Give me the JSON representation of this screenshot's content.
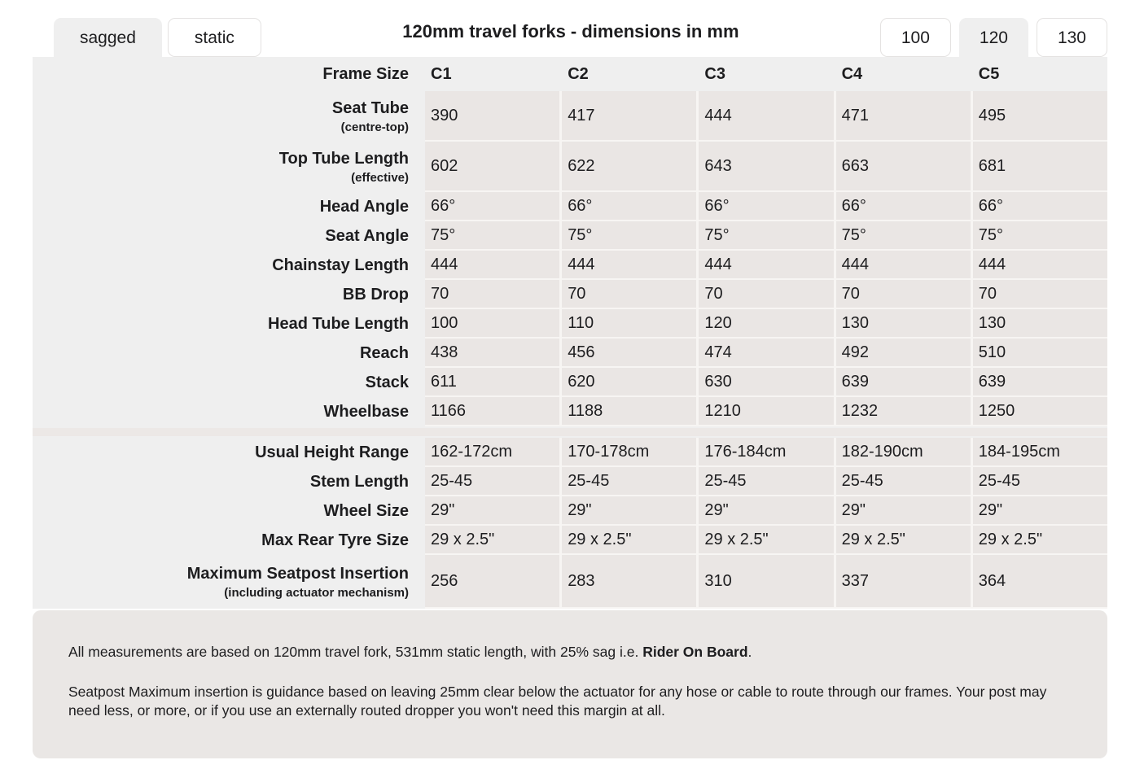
{
  "header": {
    "title": "120mm travel forks - dimensions in mm",
    "view_tabs": [
      {
        "label": "sagged",
        "active": true
      },
      {
        "label": "static",
        "active": false
      }
    ],
    "travel_tabs": [
      {
        "label": "100",
        "active": false
      },
      {
        "label": "120",
        "active": true
      },
      {
        "label": "130",
        "active": false
      }
    ]
  },
  "table": {
    "header_label": "Frame Size",
    "columns": [
      "C1",
      "C2",
      "C3",
      "C4",
      "C5"
    ],
    "sections": [
      {
        "rows": [
          {
            "label": "Seat Tube",
            "sublabel": "(centre-top)",
            "values": [
              "390",
              "417",
              "444",
              "471",
              "495"
            ]
          },
          {
            "label": "Top Tube Length",
            "sublabel": "(effective)",
            "values": [
              "602",
              "622",
              "643",
              "663",
              "681"
            ]
          },
          {
            "label": "Head Angle",
            "values": [
              "66°",
              "66°",
              "66°",
              "66°",
              "66°"
            ]
          },
          {
            "label": "Seat Angle",
            "values": [
              "75°",
              "75°",
              "75°",
              "75°",
              "75°"
            ]
          },
          {
            "label": "Chainstay Length",
            "values": [
              "444",
              "444",
              "444",
              "444",
              "444"
            ]
          },
          {
            "label": "BB Drop",
            "values": [
              "70",
              "70",
              "70",
              "70",
              "70"
            ]
          },
          {
            "label": "Head Tube Length",
            "values": [
              "100",
              "110",
              "120",
              "130",
              "130"
            ]
          },
          {
            "label": "Reach",
            "values": [
              "438",
              "456",
              "474",
              "492",
              "510"
            ]
          },
          {
            "label": "Stack",
            "values": [
              "611",
              "620",
              "630",
              "639",
              "639"
            ]
          },
          {
            "label": "Wheelbase",
            "values": [
              "1166",
              "1188",
              "1210",
              "1232",
              "1250"
            ]
          }
        ]
      },
      {
        "rows": [
          {
            "label": "Usual Height Range",
            "values": [
              "162-172cm",
              "170-178cm",
              "176-184cm",
              "182-190cm",
              "184-195cm"
            ]
          },
          {
            "label": "Stem Length",
            "values": [
              "25-45",
              "25-45",
              "25-45",
              "25-45",
              "25-45"
            ]
          },
          {
            "label": "Wheel Size",
            "values": [
              "29\"",
              "29\"",
              "29\"",
              "29\"",
              "29\""
            ]
          },
          {
            "label": "Max Rear Tyre Size",
            "values": [
              "29 x 2.5\"",
              "29 x 2.5\"",
              "29 x 2.5\"",
              "29 x 2.5\"",
              "29 x 2.5\""
            ]
          },
          {
            "label": "Maximum Seatpost Insertion",
            "sublabel": "(including actuator mechanism)",
            "values": [
              "256",
              "283",
              "310",
              "337",
              "364"
            ]
          }
        ]
      }
    ]
  },
  "notes": {
    "note1_prefix": "All measurements are based on 120mm travel fork, 531mm static length, with 25% sag i.e. ",
    "note1_bold": "Rider On Board",
    "note1_suffix": ".",
    "note2": "Seatpost Maximum insertion is guidance based on leaving 25mm clear below the actuator for any hose or cable to route through our frames. Your post may need less, or more, or if you use an externally routed dropper you won't need this margin at all."
  },
  "colors": {
    "table_background": "#efefef",
    "cell_background": "#eae6e4",
    "notes_background": "#eae7e5",
    "active_tab_background": "#efefef",
    "inactive_tab_border": "#e4e2e1",
    "text": "#1d1d1f"
  }
}
